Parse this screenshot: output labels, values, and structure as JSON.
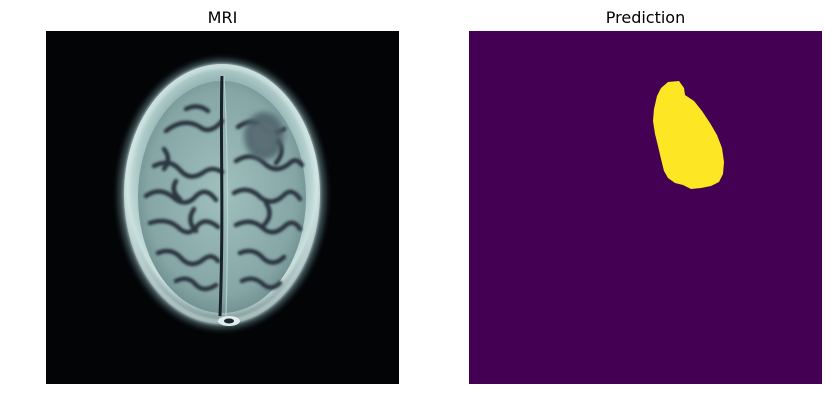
{
  "panels": {
    "left": {
      "title": "MRI"
    },
    "right": {
      "title": "Prediction"
    }
  },
  "colors": {
    "page_background": "#ffffff",
    "mri_background": "#020406",
    "mri_skull": "#b8d4d2",
    "mri_tissue": "#8fb0b0",
    "mri_dark_sulci": "#2a3340",
    "prediction_background": "#440154",
    "prediction_mask": "#fde725"
  }
}
